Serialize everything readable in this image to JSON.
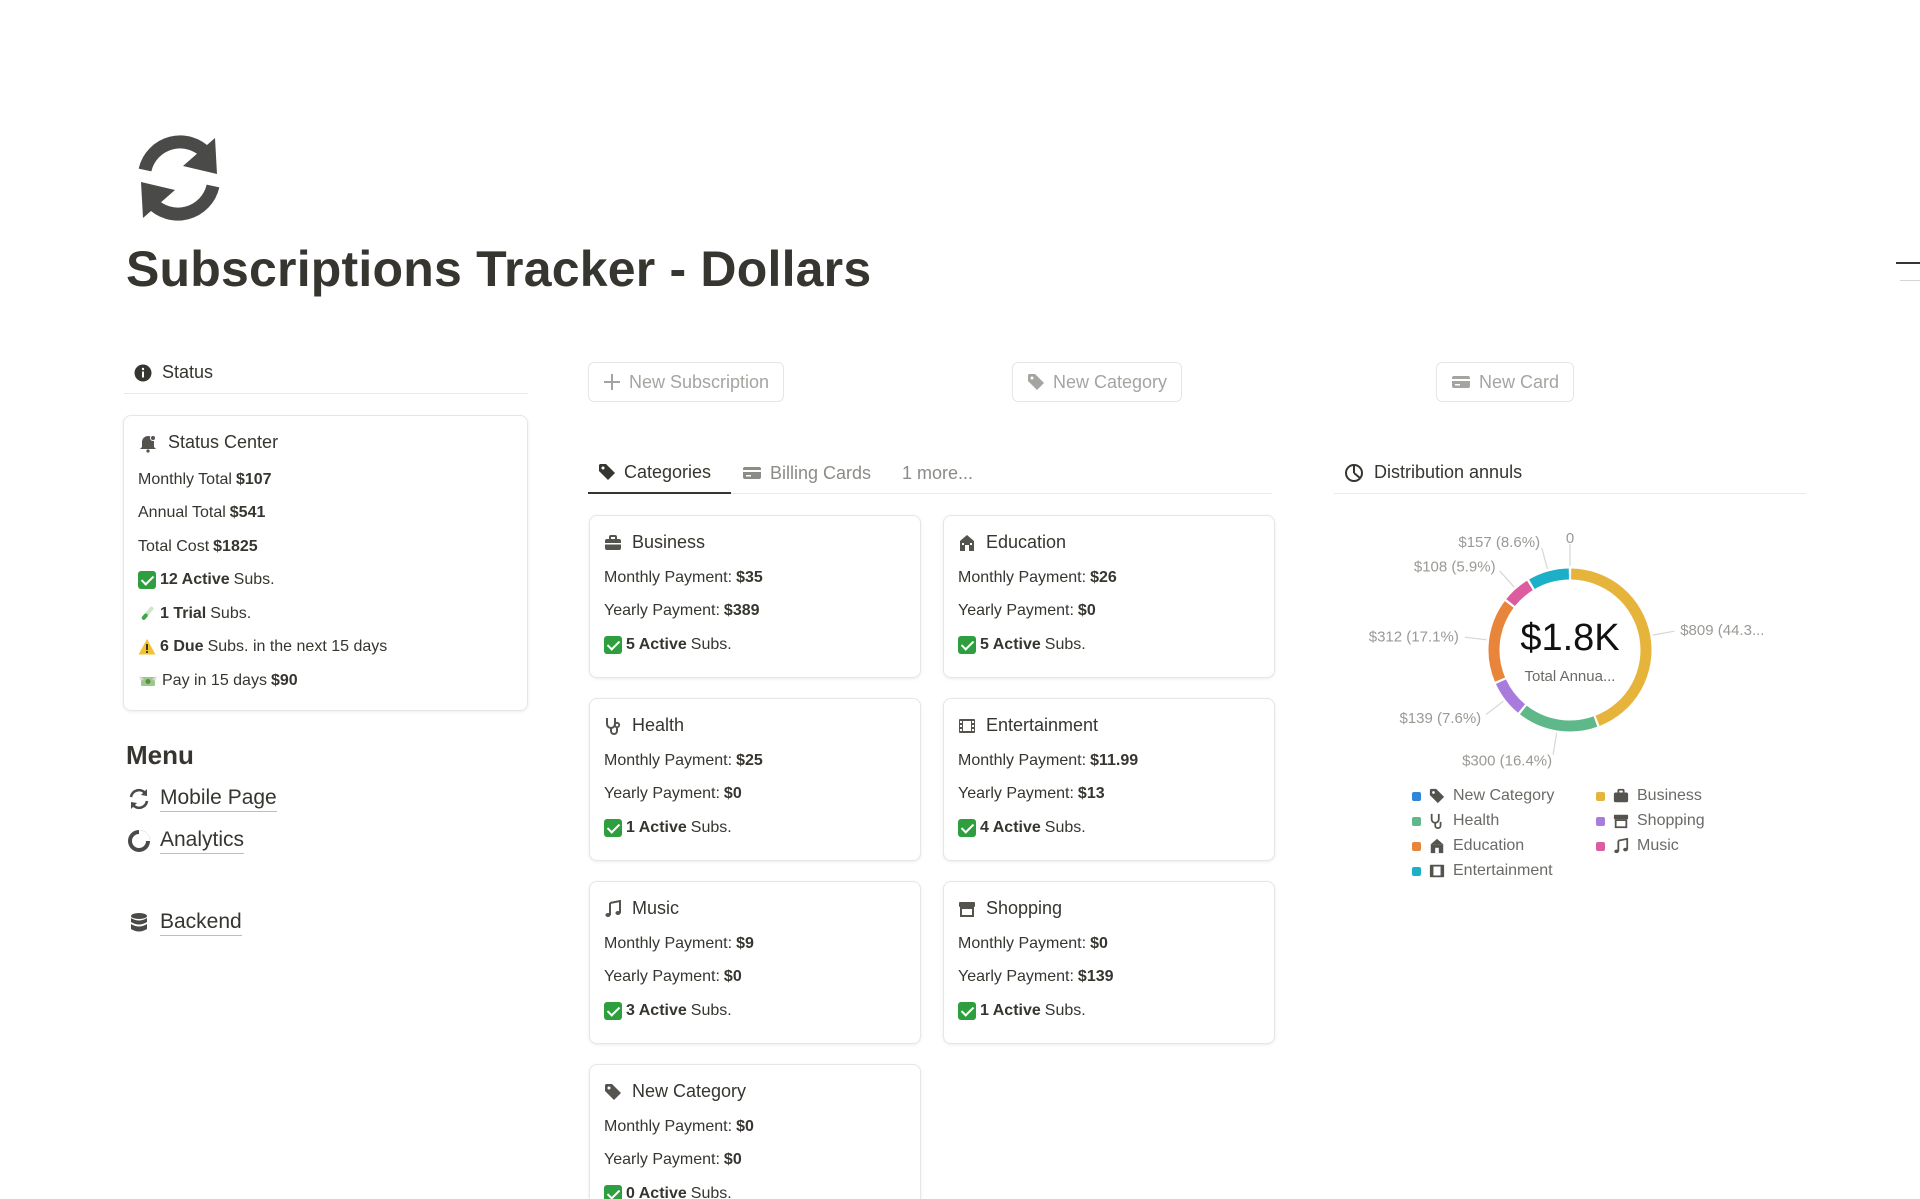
{
  "page": {
    "title": "Subscriptions Tracker - Dollars",
    "icon": "refresh-arrows-icon"
  },
  "status": {
    "heading": "Status",
    "card_title": "Status Center",
    "monthly_label": "Monthly Total",
    "monthly_value": "$107",
    "annual_label": "Annual Total",
    "annual_value": "$541",
    "total_label": "Total Cost",
    "total_value": "$1825",
    "active_count": "12 Active",
    "active_suffix": "Subs.",
    "trial_count": "1 Trial",
    "trial_suffix": "Subs.",
    "due_count": "6 Due",
    "due_suffix": "Subs. in the next 15 days",
    "pay_label": "Pay in 15 days",
    "pay_value": "$90"
  },
  "menu": {
    "title": "Menu",
    "items": [
      {
        "label": "Mobile Page",
        "icon": "refresh-icon"
      },
      {
        "label": "Analytics",
        "icon": "pie-icon"
      },
      {
        "label": "Backend",
        "icon": "database-icon"
      }
    ]
  },
  "buttons": {
    "new_subscription": "New Subscription",
    "new_category": "New Category",
    "new_card": "New Card"
  },
  "tabs": {
    "categories": "Categories",
    "billing_cards": "Billing Cards",
    "more": "1 more..."
  },
  "labels": {
    "monthly": "Monthly Payment:",
    "yearly": "Yearly Payment:",
    "subs": "Subs."
  },
  "categories": [
    {
      "name": "Business",
      "icon": "briefcase-icon",
      "monthly": "$35",
      "yearly": "$389",
      "active": "5 Active"
    },
    {
      "name": "Education",
      "icon": "school-icon",
      "monthly": "$26",
      "yearly": "$0",
      "active": "5 Active"
    },
    {
      "name": "Health",
      "icon": "stethoscope-icon",
      "monthly": "$25",
      "yearly": "$0",
      "active": "1 Active"
    },
    {
      "name": "Entertainment",
      "icon": "film-icon",
      "monthly": "$11.99",
      "yearly": "$13",
      "active": "4 Active"
    },
    {
      "name": "Music",
      "icon": "music-note-icon",
      "monthly": "$9",
      "yearly": "$0",
      "active": "3 Active"
    },
    {
      "name": "Shopping",
      "icon": "store-icon",
      "monthly": "$0",
      "yearly": "$139",
      "active": "1 Active"
    },
    {
      "name": "New Category",
      "icon": "tag-icon",
      "monthly": "$0",
      "yearly": "$0",
      "active": "0 Active"
    }
  ],
  "distribution": {
    "heading": "Distribution annuls",
    "center_value": "$1.8K",
    "center_label": "Total Annua...",
    "colors": {
      "Business": "#e6b43a",
      "Health": "#5fb88a",
      "Shopping": "#a77cdc",
      "Education": "#e8853a",
      "Music": "#dd5ca0",
      "Entertainment": "#1bb0c8",
      "New Category": "#2f86d8"
    }
  },
  "chart_data": {
    "type": "pie",
    "title": "Distribution annuls",
    "series": [
      {
        "name": "Business",
        "value": 809,
        "label": "$809 (44.3..."
      },
      {
        "name": "Health",
        "value": 300,
        "label": "$300 (16.4%)"
      },
      {
        "name": "Shopping",
        "value": 139,
        "label": "$139 (7.6%)"
      },
      {
        "name": "Education",
        "value": 312,
        "label": "$312 (17.1%)"
      },
      {
        "name": "Music",
        "value": 108,
        "label": "$108 (5.9%)"
      },
      {
        "name": "Entertainment",
        "value": 157,
        "label": "$157 (8.6%)"
      },
      {
        "name": "New Category",
        "value": 0,
        "label": "0"
      }
    ],
    "legend": [
      "New Category",
      "Business",
      "Health",
      "Shopping",
      "Education",
      "Music",
      "Entertainment"
    ],
    "legend_placement": "bottom"
  }
}
